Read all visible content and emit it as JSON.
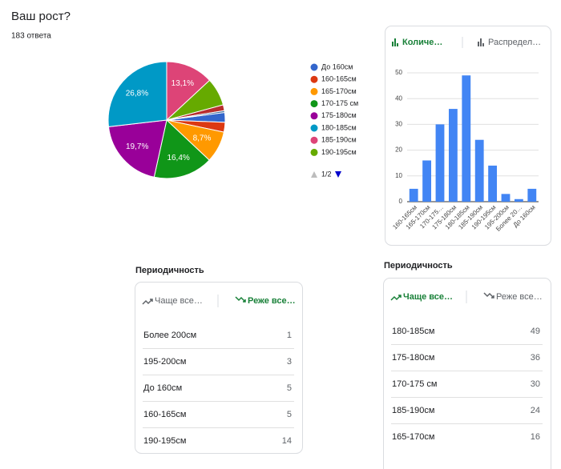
{
  "header": {
    "title": "Ваш рост?",
    "subtitle": "183 ответа"
  },
  "chart_data": [
    {
      "type": "pie",
      "categories": [
        "До 160см",
        "160-165см",
        "165-170см",
        "170-175 см",
        "175-180см",
        "180-185см",
        "185-190см",
        "190-195см",
        null,
        null
      ],
      "values": [
        2.7,
        2.7,
        8.7,
        16.4,
        19.7,
        26.8,
        13.1,
        7.7,
        1.6,
        0.5
      ],
      "value_labels": [
        null,
        null,
        "8,7%",
        "16,4%",
        "19,7%",
        "26,8%",
        "13,1%",
        null,
        null,
        null
      ],
      "colors": [
        "#3366cc",
        "#dc3912",
        "#ff9900",
        "#109618",
        "#990099",
        "#0099c6",
        "#dd4477",
        "#66aa00",
        "#b82e2e",
        "#316395"
      ],
      "legend_page": "1/2"
    },
    {
      "type": "bar",
      "tabs": [
        "Количе…",
        "Распредел…"
      ],
      "categories": [
        "160-165см",
        "165-170см",
        "170-175…",
        "175-180см",
        "180-185см",
        "185-190см",
        "190-195см",
        "195-200см",
        "Более 20…",
        "До 160см"
      ],
      "values": [
        5,
        16,
        30,
        36,
        49,
        24,
        14,
        3,
        1,
        5
      ],
      "color": "#4285f4",
      "ylim": [
        0,
        50
      ],
      "yticks": [
        0,
        10,
        20,
        30,
        40,
        50
      ],
      "grid": true
    }
  ],
  "tables": [
    {
      "title": "Периодичность",
      "tabs": [
        "Чаще все…",
        "Реже все…"
      ],
      "active": 1,
      "rows": [
        [
          "Более 200см",
          1
        ],
        [
          "195-200см",
          3
        ],
        [
          "До 160см",
          5
        ],
        [
          "160-165см",
          5
        ],
        [
          "190-195см",
          14
        ]
      ]
    },
    {
      "title": "Периодичность",
      "tabs": [
        "Чаще все…",
        "Реже все…"
      ],
      "active": 0,
      "rows": [
        [
          "180-185см",
          49
        ],
        [
          "175-180см",
          36
        ],
        [
          "170-175 см",
          30
        ],
        [
          "185-190см",
          24
        ],
        [
          "165-170см",
          16
        ]
      ]
    }
  ]
}
